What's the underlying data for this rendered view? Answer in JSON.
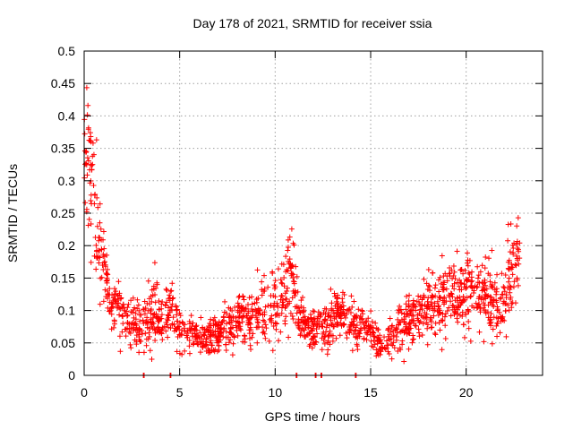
{
  "chart_data": {
    "type": "scatter",
    "title": "Day 178 of 2021, SRMTID for receiver ssia",
    "xlabel": "GPS time / hours",
    "ylabel": "SRMTID / TECUs",
    "xlim": [
      0,
      24
    ],
    "ylim": [
      0,
      0.5
    ],
    "grid": true,
    "marker": "plus",
    "color": "#ff0000",
    "x_ticks": [
      0,
      5,
      10,
      15,
      20
    ],
    "x_tick_labels": [
      "0",
      "5",
      "10",
      "15",
      "20"
    ],
    "y_ticks": [
      0,
      0.05,
      0.1,
      0.15,
      0.2,
      0.25,
      0.3,
      0.35,
      0.4,
      0.45,
      0.5
    ],
    "y_tick_labels": [
      "0",
      "0.05",
      "0.1",
      "0.15",
      "0.2",
      "0.25",
      "0.3",
      "0.35",
      "0.4",
      "0.45",
      "0.5"
    ],
    "trend": [
      {
        "x": 0.0,
        "y": 0.3,
        "spread": 0.15
      },
      {
        "x": 0.3,
        "y": 0.33,
        "spread": 0.12
      },
      {
        "x": 0.6,
        "y": 0.24,
        "spread": 0.08
      },
      {
        "x": 1.0,
        "y": 0.17,
        "spread": 0.05
      },
      {
        "x": 1.5,
        "y": 0.11,
        "spread": 0.04
      },
      {
        "x": 2.0,
        "y": 0.09,
        "spread": 0.03
      },
      {
        "x": 3.0,
        "y": 0.075,
        "spread": 0.03
      },
      {
        "x": 3.6,
        "y": 0.1,
        "spread": 0.05
      },
      {
        "x": 4.0,
        "y": 0.08,
        "spread": 0.03
      },
      {
        "x": 4.6,
        "y": 0.1,
        "spread": 0.04
      },
      {
        "x": 5.0,
        "y": 0.07,
        "spread": 0.025
      },
      {
        "x": 6.0,
        "y": 0.055,
        "spread": 0.02
      },
      {
        "x": 7.0,
        "y": 0.06,
        "spread": 0.025
      },
      {
        "x": 8.0,
        "y": 0.085,
        "spread": 0.03
      },
      {
        "x": 9.0,
        "y": 0.09,
        "spread": 0.035
      },
      {
        "x": 9.8,
        "y": 0.1,
        "spread": 0.04
      },
      {
        "x": 10.5,
        "y": 0.13,
        "spread": 0.06
      },
      {
        "x": 10.8,
        "y": 0.17,
        "spread": 0.07
      },
      {
        "x": 11.2,
        "y": 0.09,
        "spread": 0.03
      },
      {
        "x": 12.0,
        "y": 0.07,
        "spread": 0.025
      },
      {
        "x": 13.0,
        "y": 0.08,
        "spread": 0.03
      },
      {
        "x": 13.5,
        "y": 0.095,
        "spread": 0.03
      },
      {
        "x": 14.0,
        "y": 0.075,
        "spread": 0.025
      },
      {
        "x": 15.0,
        "y": 0.07,
        "spread": 0.025
      },
      {
        "x": 15.6,
        "y": 0.04,
        "spread": 0.015
      },
      {
        "x": 16.5,
        "y": 0.07,
        "spread": 0.03
      },
      {
        "x": 17.5,
        "y": 0.09,
        "spread": 0.035
      },
      {
        "x": 18.5,
        "y": 0.11,
        "spread": 0.04
      },
      {
        "x": 19.5,
        "y": 0.13,
        "spread": 0.05
      },
      {
        "x": 20.5,
        "y": 0.13,
        "spread": 0.05
      },
      {
        "x": 21.2,
        "y": 0.12,
        "spread": 0.045
      },
      {
        "x": 21.8,
        "y": 0.09,
        "spread": 0.03
      },
      {
        "x": 22.2,
        "y": 0.15,
        "spread": 0.05
      },
      {
        "x": 22.8,
        "y": 0.18,
        "spread": 0.06
      }
    ],
    "zero_points_x": [
      3.1,
      4.5,
      11.1,
      12.1,
      12.4,
      14.2
    ],
    "point_count": 1700,
    "seed": 178
  }
}
